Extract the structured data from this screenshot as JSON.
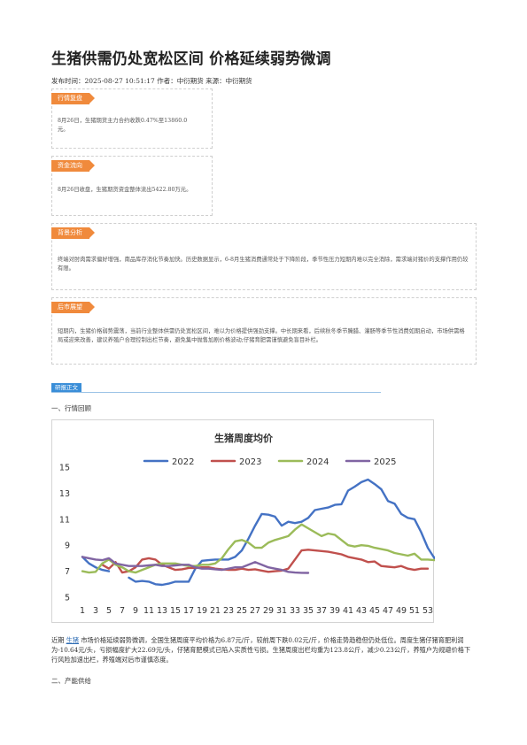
{
  "article": {
    "title": "生猪供需仍处宽松区间 价格延续弱势微调",
    "meta": "发布时间：2025-08-27 10:51:17 作者：中衍期货 来源：中衍期货"
  },
  "boxes": [
    {
      "tag": "行情复盘",
      "text": "8月26日，生猪期货主力合约收跌0.47%至13860.0元。"
    },
    {
      "tag": "资金流向",
      "text": "8月26日收盘，生猪期货资金整体流出5422.80万元。"
    },
    {
      "tag": "背景分析",
      "text": "终端对肘肉需求偏好增强，南品库存消化节奏加快。历史数据显示，6-8月生猪消费通常处于下降阶段，季节性压力短期内难以完全消除，需求端对猪价的支撑作用仍较有限。"
    },
    {
      "tag": "后市展望",
      "text": "短期内，生猪价格弱势震荡，当前行业整体供需仍处宽松区间，难以为价格提供强劲支撑。中长期来看，后续秋冬季节腌腊、灌肠等季节性消费如期启动，市场供需格局或迎来改善，建议养殖户合理控制出栏节奏，避免集中抛售加剧价格波动;仔猪育肥需谨慎避免盲目补栏。"
    }
  ],
  "section": {
    "tag": "研报正文",
    "h1": "一、行情回顾",
    "h2": "二、产能供给"
  },
  "paragraph": {
    "pre": "近期 ",
    "link": "生猪",
    "post": " 市场价格延续弱势微调，全国生猪周度平均价格为6.87元/斤，较前周下跌0.02元/斤，价格走势趋稳但仍处低位。周度生猪仔猪育肥利润为-10.64元/头，亏损幅度扩大22.69元/头，仔猪育肥模式已陷入实质性亏损。生猪周度出栏均重为123.8公斤，减少0.23公斤，养殖户为规避价格下行风险加速出栏，养殖端对后市谨慎态度。"
  },
  "chart_data": {
    "type": "line",
    "title": "生猪周度均价",
    "ylim": [
      5,
      15
    ],
    "yticks": [
      5,
      7,
      9,
      11,
      13,
      15
    ],
    "xticks": [
      1,
      3,
      5,
      7,
      9,
      11,
      13,
      15,
      17,
      19,
      21,
      23,
      25,
      27,
      29,
      31,
      33,
      35,
      37,
      39,
      41,
      43,
      45,
      47,
      49,
      51,
      53
    ],
    "legend_position": "top",
    "series": [
      {
        "name": "2022",
        "color": "#4472c4",
        "values": [
          8.1,
          7.6,
          7.3,
          7.1,
          7.0,
          null,
          null,
          6.5,
          6.2,
          6.25,
          6.2,
          6.0,
          5.95,
          6.05,
          6.2,
          6.2,
          6.2,
          7.2,
          7.8,
          7.85,
          7.9,
          7.9,
          7.9,
          8.1,
          8.6,
          9.5,
          10.5,
          11.4,
          11.35,
          11.2,
          10.5,
          10.8,
          10.7,
          10.8,
          11.1,
          11.7,
          11.8,
          11.9,
          12.1,
          12.15,
          13.2,
          13.5,
          13.85,
          14.05,
          13.7,
          13.3,
          12.4,
          12.2,
          11.4,
          11.1,
          11.0,
          10.0,
          8.8,
          8.0,
          8.6
        ]
      },
      {
        "name": "2023",
        "color": "#c0504d",
        "values": [
          null,
          null,
          null,
          7.5,
          7.2,
          7.7,
          6.9,
          7.0,
          7.3,
          7.9,
          8.0,
          7.9,
          7.5,
          7.3,
          7.1,
          7.15,
          7.25,
          7.25,
          7.3,
          7.3,
          7.2,
          7.15,
          7.1,
          7.1,
          7.2,
          7.1,
          7.15,
          7.05,
          6.95,
          7.0,
          7.05,
          7.2,
          7.9,
          8.6,
          8.65,
          8.6,
          8.55,
          8.5,
          8.4,
          8.3,
          8.1,
          8.0,
          7.9,
          7.7,
          7.75,
          7.4,
          7.35,
          7.3,
          7.4,
          7.2,
          7.1,
          7.2,
          7.2
        ]
      },
      {
        "name": "2024",
        "color": "#9bbb59",
        "values": [
          7.0,
          6.9,
          6.95,
          7.6,
          7.9,
          7.5,
          7.3,
          7.0,
          6.9,
          7.1,
          7.3,
          7.5,
          7.6,
          7.6,
          7.6,
          7.5,
          7.4,
          7.4,
          7.5,
          7.5,
          7.6,
          8.0,
          8.7,
          9.3,
          9.4,
          9.2,
          8.8,
          8.8,
          9.2,
          9.4,
          9.55,
          9.7,
          10.2,
          10.6,
          10.3,
          10.0,
          9.7,
          9.9,
          9.8,
          9.4,
          9.0,
          8.9,
          9.0,
          8.95,
          8.8,
          8.7,
          8.6,
          8.4,
          8.3,
          8.2,
          8.35,
          7.9,
          7.9,
          7.85,
          7.9
        ]
      },
      {
        "name": "2025",
        "color": "#8064a2",
        "values": [
          8.1,
          8.0,
          7.9,
          7.85,
          8.0,
          7.6,
          7.5,
          7.4,
          7.4,
          7.4,
          7.45,
          7.5,
          7.4,
          7.4,
          7.45,
          7.5,
          7.5,
          7.3,
          7.2,
          7.2,
          7.15,
          7.1,
          7.2,
          7.3,
          7.3,
          7.5,
          7.7,
          7.5,
          7.3,
          7.2,
          7.1,
          6.95,
          6.9,
          6.88,
          6.87
        ]
      }
    ]
  }
}
